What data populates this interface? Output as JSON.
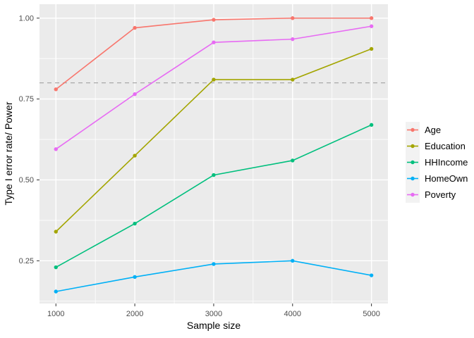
{
  "chart_data": {
    "type": "line",
    "title": "",
    "xlabel": "Sample size",
    "ylabel": "Type I error rate/ Power",
    "x": [
      1000,
      2000,
      3000,
      4000,
      5000
    ],
    "series": [
      {
        "name": "Age",
        "color": "#F8766D",
        "values": [
          0.78,
          0.97,
          0.995,
          1.0,
          1.0
        ]
      },
      {
        "name": "Education",
        "color": "#A3A500",
        "values": [
          0.34,
          0.575,
          0.81,
          0.81,
          0.905
        ]
      },
      {
        "name": "HHIncome",
        "color": "#00BF7D",
        "values": [
          0.23,
          0.365,
          0.515,
          0.56,
          0.67
        ]
      },
      {
        "name": "HomeOwn",
        "color": "#00B0F6",
        "values": [
          0.155,
          0.2,
          0.24,
          0.25,
          0.205
        ]
      },
      {
        "name": "Poverty",
        "color": "#E76BF3",
        "values": [
          0.595,
          0.765,
          0.925,
          0.935,
          0.975
        ]
      }
    ],
    "reference_line": {
      "y": 0.8,
      "style": "dashed",
      "color": "#AAAAAA"
    },
    "x_ticks": [
      1000,
      2000,
      3000,
      4000,
      5000
    ],
    "x_tick_labels": [
      "1000",
      "2000",
      "3000",
      "4000",
      "5000"
    ],
    "y_ticks": [
      0.25,
      0.5,
      0.75,
      1.0
    ],
    "y_tick_labels": [
      "0.25",
      "0.50",
      "0.75",
      "1.00"
    ],
    "x_minor": [
      1500,
      2500,
      3500,
      4500
    ],
    "y_minor": [
      0.125,
      0.375,
      0.625,
      0.875
    ],
    "xlim": [
      792,
      5209
    ],
    "ylim": [
      0.118,
      1.043
    ],
    "grid": true,
    "legend_position": "right",
    "colors": {
      "panel_bg": "#EBEBEB",
      "grid": "#FFFFFF",
      "tick_mark": "#333333",
      "tick_label": "#4D4D4D",
      "axis_title": "#000000",
      "legend_key_bg": "#F2F2F2"
    }
  }
}
